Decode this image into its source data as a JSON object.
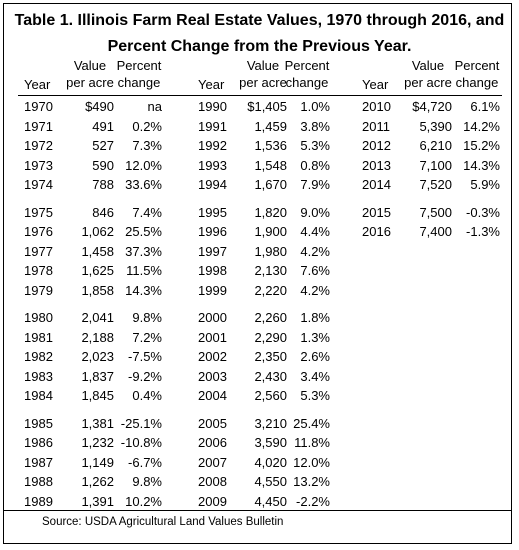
{
  "title": "Table 1.  Illinois Farm Real Estate Values, 1970 through 2016, and Percent Change from the Previous Year.",
  "header_top": [
    "Value",
    "Percent"
  ],
  "header_bottom": [
    "Year",
    "per acre",
    "change"
  ],
  "groups": [
    {
      "blocks": [
        [
          [
            "1970",
            "$490",
            "na"
          ],
          [
            "1971",
            "491",
            "0.2%"
          ],
          [
            "1972",
            "527",
            "7.3%"
          ],
          [
            "1973",
            "590",
            "12.0%"
          ],
          [
            "1974",
            "788",
            "33.6%"
          ]
        ],
        [
          [
            "1975",
            "846",
            "7.4%"
          ],
          [
            "1976",
            "1,062",
            "25.5%"
          ],
          [
            "1977",
            "1,458",
            "37.3%"
          ],
          [
            "1978",
            "1,625",
            "11.5%"
          ],
          [
            "1979",
            "1,858",
            "14.3%"
          ]
        ],
        [
          [
            "1980",
            "2,041",
            "9.8%"
          ],
          [
            "1981",
            "2,188",
            "7.2%"
          ],
          [
            "1982",
            "2,023",
            "-7.5%"
          ],
          [
            "1983",
            "1,837",
            "-9.2%"
          ],
          [
            "1984",
            "1,845",
            "0.4%"
          ]
        ],
        [
          [
            "1985",
            "1,381",
            "-25.1%"
          ],
          [
            "1986",
            "1,232",
            "-10.8%"
          ],
          [
            "1987",
            "1,149",
            "-6.7%"
          ],
          [
            "1988",
            "1,262",
            "9.8%"
          ],
          [
            "1989",
            "1,391",
            "10.2%"
          ]
        ]
      ]
    },
    {
      "blocks": [
        [
          [
            "1990",
            "$1,405",
            "1.0%"
          ],
          [
            "1991",
            "1,459",
            "3.8%"
          ],
          [
            "1992",
            "1,536",
            "5.3%"
          ],
          [
            "1993",
            "1,548",
            "0.8%"
          ],
          [
            "1994",
            "1,670",
            "7.9%"
          ]
        ],
        [
          [
            "1995",
            "1,820",
            "9.0%"
          ],
          [
            "1996",
            "1,900",
            "4.4%"
          ],
          [
            "1997",
            "1,980",
            "4.2%"
          ],
          [
            "1998",
            "2,130",
            "7.6%"
          ],
          [
            "1999",
            "2,220",
            "4.2%"
          ]
        ],
        [
          [
            "2000",
            "2,260",
            "1.8%"
          ],
          [
            "2001",
            "2,290",
            "1.3%"
          ],
          [
            "2002",
            "2,350",
            "2.6%"
          ],
          [
            "2003",
            "2,430",
            "3.4%"
          ],
          [
            "2004",
            "2,560",
            "5.3%"
          ]
        ],
        [
          [
            "2005",
            "3,210",
            "25.4%"
          ],
          [
            "2006",
            "3,590",
            "11.8%"
          ],
          [
            "2007",
            "4,020",
            "12.0%"
          ],
          [
            "2008",
            "4,550",
            "13.2%"
          ],
          [
            "2009",
            "4,450",
            "-2.2%"
          ]
        ]
      ]
    },
    {
      "blocks": [
        [
          [
            "2010",
            "$4,720",
            "6.1%"
          ],
          [
            "2011",
            "5,390",
            "14.2%"
          ],
          [
            "2012",
            "6,210",
            "15.2%"
          ],
          [
            "2013",
            "7,100",
            "14.3%"
          ],
          [
            "2014",
            "7,520",
            "5.9%"
          ]
        ],
        [
          [
            "2015",
            "7,500",
            "-0.3%"
          ],
          [
            "2016",
            "7,400",
            "-1.3%"
          ]
        ]
      ]
    }
  ],
  "source": "Source:  USDA Agricultural Land Values Bulletin"
}
